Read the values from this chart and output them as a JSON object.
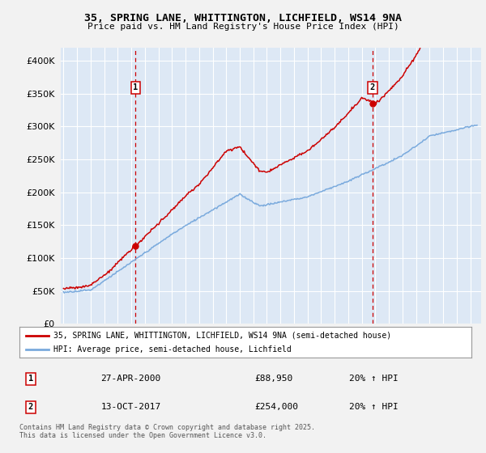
{
  "title": "35, SPRING LANE, WHITTINGTON, LICHFIELD, WS14 9NA",
  "subtitle": "Price paid vs. HM Land Registry's House Price Index (HPI)",
  "legend_label_red": "35, SPRING LANE, WHITTINGTON, LICHFIELD, WS14 9NA (semi-detached house)",
  "legend_label_blue": "HPI: Average price, semi-detached house, Lichfield",
  "annotation1_date": "27-APR-2000",
  "annotation1_price": "£88,950",
  "annotation1_hpi": "20% ↑ HPI",
  "annotation2_date": "13-OCT-2017",
  "annotation2_price": "£254,000",
  "annotation2_hpi": "20% ↑ HPI",
  "footnote": "Contains HM Land Registry data © Crown copyright and database right 2025.\nThis data is licensed under the Open Government Licence v3.0.",
  "red_color": "#cc0000",
  "blue_color": "#7aaadd",
  "fig_bg_color": "#f2f2f2",
  "plot_bg_color": "#dde8f5",
  "grid_color": "#ffffff",
  "vline_color": "#cc0000",
  "marker1_year": 2000.32,
  "marker2_year": 2017.79,
  "ylim": [
    0,
    420000
  ],
  "xlim_start": 1994.8,
  "xlim_end": 2025.8
}
